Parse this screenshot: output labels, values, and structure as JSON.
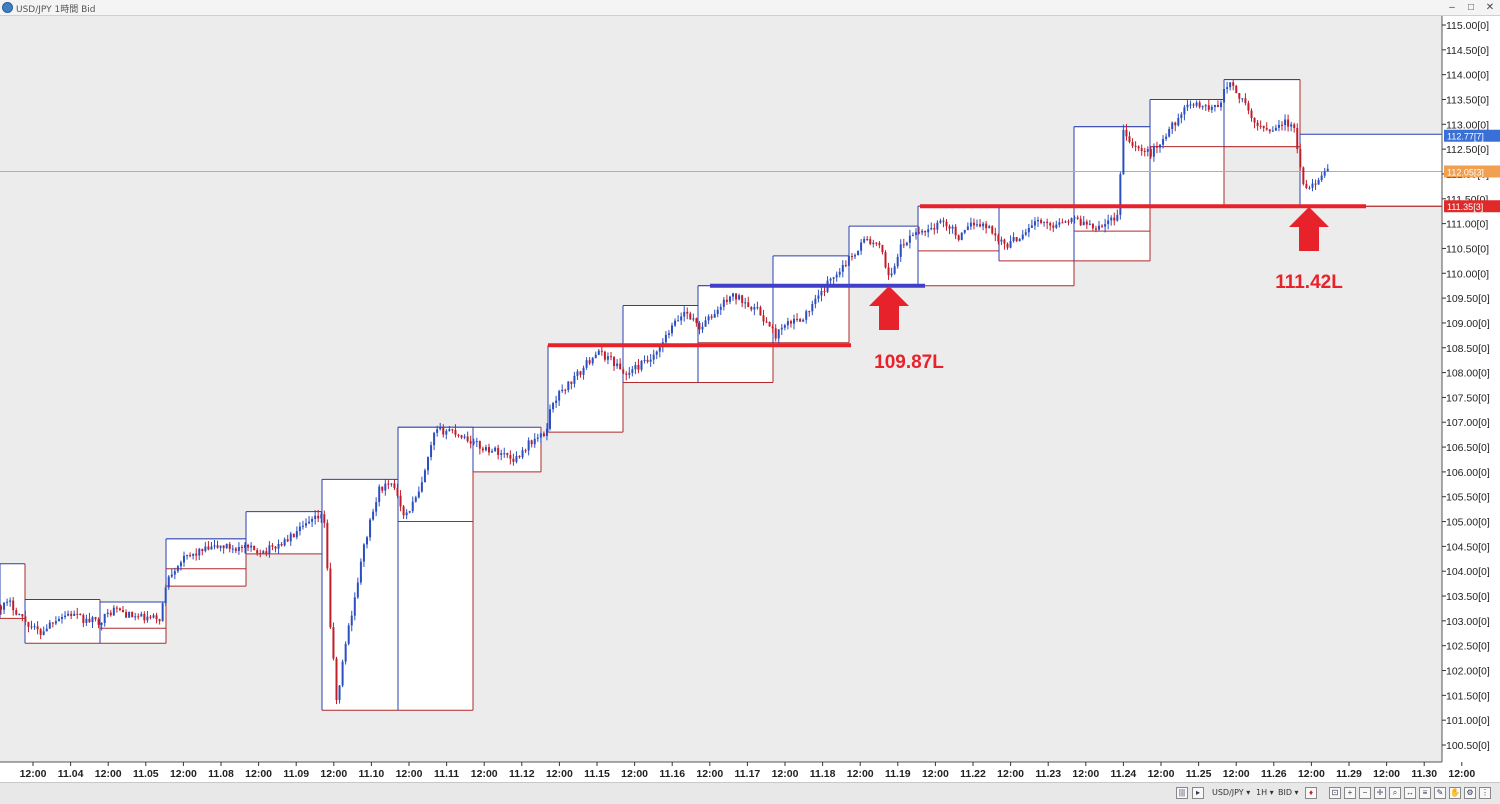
{
  "window": {
    "title": "USD/JPY 1時間 Bid",
    "controls": {
      "minimize": "–",
      "maximize": "□",
      "close": "✕"
    }
  },
  "toolbar": {
    "symbol": "USD/JPY ▾",
    "timeframe": "1H ▾",
    "side": "BID ▾"
  },
  "colors": {
    "bull": "#2b4fc0",
    "bear": "#c01e2a",
    "range_high": "#2a3fb0",
    "range_low": "#b02a2a",
    "support_red": "#e8222b",
    "support_blue": "#3f3fc8",
    "price_line": "#f0a050",
    "label_red": "#e8222b"
  },
  "chart_data": {
    "type": "candlestick",
    "ylim": [
      100.25,
      115.15
    ],
    "y_ticks": [
      "115.00[0]",
      "114.50[0]",
      "114.00[0]",
      "113.50[0]",
      "113.00[0]",
      "112.50[0]",
      "112.00[0]",
      "111.50[0]",
      "111.00[0]",
      "110.50[0]",
      "110.00[0]",
      "109.50[0]",
      "109.00[0]",
      "108.50[0]",
      "108.00[0]",
      "107.50[0]",
      "107.00[0]",
      "106.50[0]",
      "106.00[0]",
      "105.50[0]",
      "105.00[0]",
      "104.50[0]",
      "104.00[0]",
      "103.50[0]",
      "103.00[0]",
      "102.50[0]",
      "102.00[0]",
      "101.50[0]",
      "101.00[0]",
      "100.50[0]"
    ],
    "x_ticks": [
      "12:00",
      "11.04",
      "12:00",
      "11.05",
      "12:00",
      "11.08",
      "12:00",
      "11.09",
      "12:00",
      "11.10",
      "12:00",
      "11.11",
      "12:00",
      "11.12",
      "12:00",
      "11.15",
      "12:00",
      "11.16",
      "12:00",
      "11.17",
      "12:00",
      "11.18",
      "12:00",
      "11.19",
      "12:00",
      "11.22",
      "12:00",
      "11.23",
      "12:00",
      "11.24",
      "12:00",
      "11.25",
      "12:00",
      "11.26",
      "12:00",
      "11.29",
      "12:00",
      "11.30",
      "12:00"
    ],
    "price_markers": [
      {
        "value": 112.77,
        "label": "112.77[7]",
        "color": "#3a6fd8"
      },
      {
        "value": 112.05,
        "label": "112.05[3]",
        "color": "#f0a050"
      },
      {
        "value": 111.35,
        "label": "111.35[3]",
        "color": "#e02a2a"
      }
    ],
    "current_price": 112.05,
    "session_ranges": [
      {
        "high": 104.15,
        "low": 103.05
      },
      {
        "high": 103.43,
        "low": 102.55
      },
      {
        "high": 103.38,
        "low": 102.55
      },
      {
        "high": 103.38,
        "low": 102.85
      },
      {
        "high": 104.65,
        "low": 103.7
      },
      {
        "high": 104.65,
        "low": 104.05
      },
      {
        "high": 105.2,
        "low": 104.35
      },
      {
        "high": 105.85,
        "low": 101.2
      },
      {
        "high": 106.9,
        "low": 101.2
      },
      {
        "high": 106.9,
        "low": 105.0
      },
      {
        "high": 106.9,
        "low": 106.0
      },
      {
        "high": 108.55,
        "low": 106.8
      },
      {
        "high": 109.35,
        "low": 107.8
      },
      {
        "high": 109.75,
        "low": 107.8
      },
      {
        "high": 109.75,
        "low": 108.6
      },
      {
        "high": 110.35,
        "low": 108.6
      },
      {
        "high": 110.95,
        "low": 109.75
      },
      {
        "high": 111.35,
        "low": 109.75
      },
      {
        "high": 111.35,
        "low": 110.45
      },
      {
        "high": 111.35,
        "low": 110.25
      },
      {
        "high": 112.95,
        "low": 110.25
      },
      {
        "high": 112.95,
        "low": 110.85
      },
      {
        "high": 113.5,
        "low": 111.35
      },
      {
        "high": 113.5,
        "low": 112.55
      },
      {
        "high": 113.9,
        "low": 112.55
      },
      {
        "high": 113.9,
        "low": 112.55
      },
      {
        "high": 112.8,
        "low": 111.35
      }
    ],
    "annotations": [
      {
        "text": "109.87L"
      },
      {
        "text": "111.42L"
      }
    ],
    "support_lines": [
      {
        "value": 108.55,
        "color": "red"
      },
      {
        "value": 109.75,
        "color": "blue"
      },
      {
        "value": 111.35,
        "color": "red"
      }
    ],
    "price_path": [
      [
        0,
        103.3
      ],
      [
        10,
        103.35
      ],
      [
        25,
        103.0
      ],
      [
        40,
        102.75
      ],
      [
        55,
        103.05
      ],
      [
        70,
        103.15
      ],
      [
        85,
        103.0
      ],
      [
        100,
        103.0
      ],
      [
        115,
        103.25
      ],
      [
        130,
        103.1
      ],
      [
        145,
        103.05
      ],
      [
        160,
        103.05
      ],
      [
        168,
        103.9
      ],
      [
        180,
        104.2
      ],
      [
        200,
        104.4
      ],
      [
        220,
        104.5
      ],
      [
        245,
        104.45
      ],
      [
        265,
        104.4
      ],
      [
        285,
        104.6
      ],
      [
        305,
        104.9
      ],
      [
        320,
        105.1
      ],
      [
        325,
        105.0
      ],
      [
        330,
        103.0
      ],
      [
        337,
        101.3
      ],
      [
        345,
        102.5
      ],
      [
        355,
        103.5
      ],
      [
        365,
        104.6
      ],
      [
        380,
        105.7
      ],
      [
        395,
        105.7
      ],
      [
        405,
        105.1
      ],
      [
        420,
        105.6
      ],
      [
        435,
        106.8
      ],
      [
        450,
        106.85
      ],
      [
        465,
        106.7
      ],
      [
        480,
        106.5
      ],
      [
        500,
        106.4
      ],
      [
        515,
        106.25
      ],
      [
        530,
        106.6
      ],
      [
        545,
        106.75
      ],
      [
        552,
        107.4
      ],
      [
        565,
        107.7
      ],
      [
        580,
        108.0
      ],
      [
        595,
        108.4
      ],
      [
        610,
        108.3
      ],
      [
        625,
        107.95
      ],
      [
        640,
        108.15
      ],
      [
        655,
        108.3
      ],
      [
        670,
        108.85
      ],
      [
        685,
        109.25
      ],
      [
        700,
        108.9
      ],
      [
        715,
        109.2
      ],
      [
        730,
        109.55
      ],
      [
        745,
        109.45
      ],
      [
        760,
        109.2
      ],
      [
        775,
        108.75
      ],
      [
        790,
        109.0
      ],
      [
        805,
        109.15
      ],
      [
        820,
        109.55
      ],
      [
        835,
        110.0
      ],
      [
        850,
        110.3
      ],
      [
        865,
        110.7
      ],
      [
        880,
        110.5
      ],
      [
        890,
        109.9
      ],
      [
        900,
        110.5
      ],
      [
        915,
        110.8
      ],
      [
        930,
        110.9
      ],
      [
        945,
        111.05
      ],
      [
        960,
        110.7
      ],
      [
        975,
        111.05
      ],
      [
        990,
        110.9
      ],
      [
        1005,
        110.55
      ],
      [
        1020,
        110.75
      ],
      [
        1035,
        111.05
      ],
      [
        1050,
        110.95
      ],
      [
        1065,
        111.1
      ],
      [
        1080,
        111.05
      ],
      [
        1095,
        110.95
      ],
      [
        1110,
        111.05
      ],
      [
        1118,
        111.2
      ],
      [
        1123,
        112.9
      ],
      [
        1135,
        112.55
      ],
      [
        1150,
        112.4
      ],
      [
        1165,
        112.75
      ],
      [
        1180,
        113.2
      ],
      [
        1195,
        113.45
      ],
      [
        1210,
        113.3
      ],
      [
        1220,
        113.45
      ],
      [
        1228,
        113.85
      ],
      [
        1240,
        113.55
      ],
      [
        1255,
        113.0
      ],
      [
        1270,
        112.9
      ],
      [
        1285,
        113.05
      ],
      [
        1295,
        112.85
      ],
      [
        1302,
        111.85
      ],
      [
        1308,
        111.6
      ],
      [
        1318,
        111.95
      ],
      [
        1330,
        112.05
      ]
    ]
  }
}
